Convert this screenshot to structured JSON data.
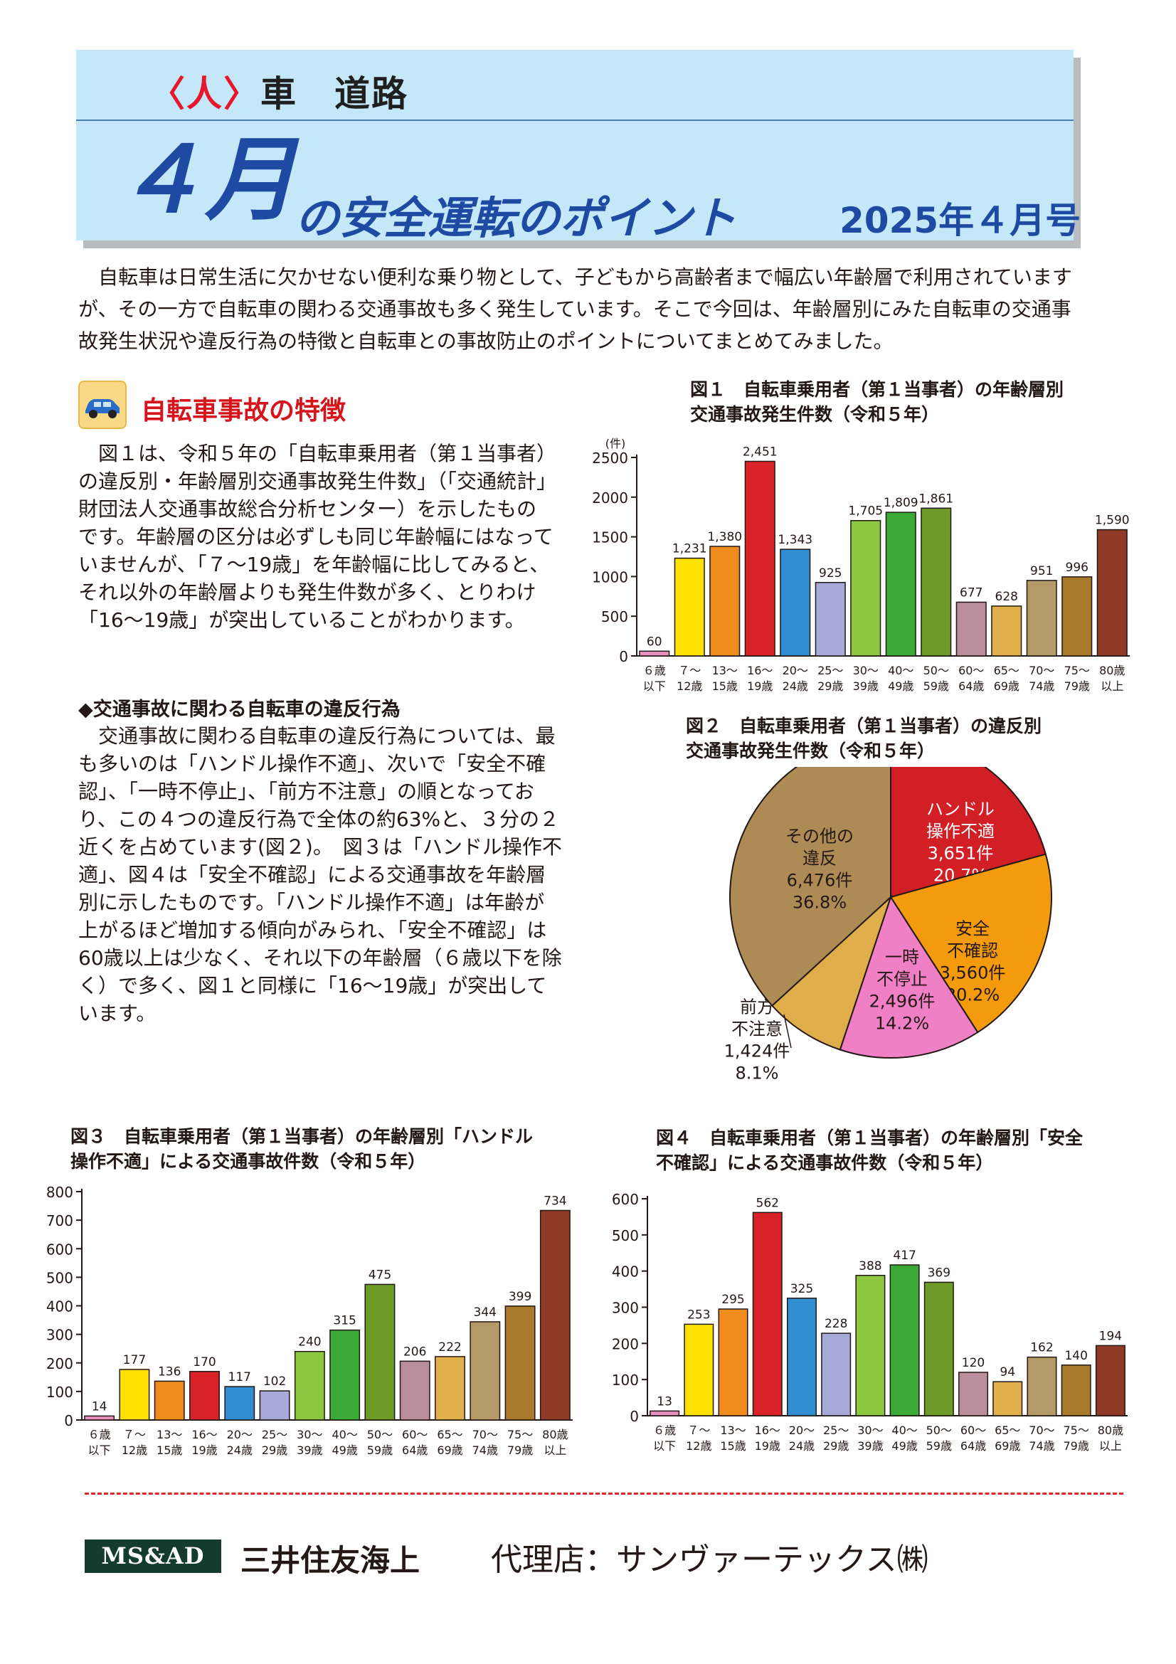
{
  "header": {
    "category_highlight": "〈人〉",
    "category_rest": "車　道路",
    "title_month": "４月",
    "title_sub": "の安全運転のポイント",
    "issue": "2025年４月号"
  },
  "intro": "自転車は日常生活に欠かせない便利な乗り物として、子どもから高齢者まで幅広い年齢層で利用されていますが、その一方で自転車の関わる交通事故も多く発生しています。そこで今回は、年齢層別にみた自転車の交通事故発生状況や違反行為の特徴と自転車との事故防止のポイントについてまとめてみました。",
  "section": {
    "icon": "car-icon",
    "title": "自転車事故の特徴",
    "para1": "図１は、令和５年の「自転車乗用者（第１当事者）の違反別・年齢層別交通事故発生件数」（「交通統計」財団法人交通事故総合分析センター）を示したものです。年齢層の区分は必ずしも同じ年齢幅にはなっていませんが、「７～19歳」を年齢幅に比してみると、それ以外の年齢層よりも発生件数が多く、とりわけ「16～19歳」が突出していることがわかります。",
    "sub_heading": "◆交通事故に関わる自転車の違反行為",
    "para2": "交通事故に関わる自転車の違反行為については、最も多いのは「ハンドル操作不適」、次いで「安全不確認」、「一時不停止」、「前方不注意」の順となっており、この４つの違反行為で全体の約63%と、３分の２近くを占めています(図２)。　図３は「ハンドル操作不適」、図４は「安全不確認」による交通事故を年齢層別に示したものです。「ハンドル操作不適」は年齢が上がるほど増加する傾向がみられ、「安全不確認」は60歳以上は少なく、それ以下の年齢層（６歳以下を除く）で多く、図１と同様に「16～19歳」が突出しています。"
  },
  "figures": {
    "fig1_title": "図１　自転車乗用者（第１当事者）の年齢層別\n交通事故発生件数（令和５年）",
    "fig2_title": "図２　自転車乗用者（第１当事者）の違反別\n交通事故発生件数（令和５年）",
    "fig3_title": "図３　自転車乗用者（第１当事者）の年齢層別「ハンドル\n操作不適」による交通事故件数（令和５年）",
    "fig4_title": "図４　自転車乗用者（第１当事者）の年齢層別「安全\n不確認」による交通事故件数（令和５年）"
  },
  "chart_data": [
    {
      "id": "fig1",
      "type": "bar",
      "title": "図１　自転車乗用者（第１当事者）の年齢層別 交通事故発生件数（令和５年）",
      "ylabel": "(件)",
      "ylim": [
        0,
        2500
      ],
      "yticks": [
        0,
        500,
        1000,
        1500,
        2000,
        2500
      ],
      "categories": [
        [
          "６歳",
          "以下"
        ],
        [
          "７～",
          "12歳"
        ],
        [
          "13～",
          "15歳"
        ],
        [
          "16～",
          "19歳"
        ],
        [
          "20～",
          "24歳"
        ],
        [
          "25～",
          "29歳"
        ],
        [
          "30～",
          "39歳"
        ],
        [
          "40～",
          "49歳"
        ],
        [
          "50～",
          "59歳"
        ],
        [
          "60～",
          "64歳"
        ],
        [
          "65～",
          "69歳"
        ],
        [
          "70～",
          "74歳"
        ],
        [
          "75～",
          "79歳"
        ],
        [
          "80歳",
          "以上"
        ]
      ],
      "values": [
        60,
        1231,
        1380,
        2451,
        1343,
        925,
        1705,
        1809,
        1861,
        677,
        628,
        951,
        996,
        1590
      ],
      "labels": [
        "60",
        "1,231",
        "1,380",
        "2,451",
        "1,343",
        "925",
        "1,705",
        "1,809",
        "1,861",
        "677",
        "628",
        "951",
        "996",
        "1,590"
      ],
      "colors": [
        "#e98fc0",
        "#fce100",
        "#f08b1d",
        "#d92128",
        "#2f8dd0",
        "#a7a9d8",
        "#8dc63f",
        "#3aa935",
        "#6e9a2a",
        "#b98d9b",
        "#e2b04a",
        "#b49a67",
        "#a8782b",
        "#8e3a26"
      ]
    },
    {
      "id": "fig2",
      "type": "pie",
      "title": "図２　自転車乗用者（第１当事者）の違反別 交通事故発生件数（令和５年）",
      "slices": [
        {
          "lines": [
            "ハンドル",
            "操作不適",
            "3,651件",
            "20.7%"
          ],
          "value": 20.7,
          "color": "#d21f26"
        },
        {
          "lines": [
            "安全",
            "不確認",
            "3,560件",
            "20.2%"
          ],
          "value": 20.2,
          "color": "#f39a0d"
        },
        {
          "lines": [
            "一時",
            "不停止",
            "2,496件",
            "14.2%"
          ],
          "value": 14.2,
          "color": "#f080c6"
        },
        {
          "lines": [
            "前方",
            "不注意",
            "1,424件",
            "8.1%"
          ],
          "value": 8.1,
          "color": "#dfae4a"
        },
        {
          "lines": [
            "その他の",
            "違反",
            "6,476件",
            "36.8%"
          ],
          "value": 36.8,
          "color": "#ae8a55"
        }
      ]
    },
    {
      "id": "fig3",
      "type": "bar",
      "title": "図３　自転車乗用者（第１当事者）の年齢層別「ハンドル操作不適」による交通事故件数（令和５年）",
      "ylim": [
        0,
        800
      ],
      "yticks": [
        0,
        100,
        200,
        300,
        400,
        500,
        600,
        700,
        800
      ],
      "categories": [
        [
          "６歳",
          "以下"
        ],
        [
          "７～",
          "12歳"
        ],
        [
          "13～",
          "15歳"
        ],
        [
          "16～",
          "19歳"
        ],
        [
          "20～",
          "24歳"
        ],
        [
          "25～",
          "29歳"
        ],
        [
          "30～",
          "39歳"
        ],
        [
          "40～",
          "49歳"
        ],
        [
          "50～",
          "59歳"
        ],
        [
          "60～",
          "64歳"
        ],
        [
          "65～",
          "69歳"
        ],
        [
          "70～",
          "74歳"
        ],
        [
          "75～",
          "79歳"
        ],
        [
          "80歳",
          "以上"
        ]
      ],
      "values": [
        14,
        177,
        136,
        170,
        117,
        102,
        240,
        315,
        475,
        206,
        222,
        344,
        399,
        734
      ],
      "labels": [
        "14",
        "177",
        "136",
        "170",
        "117",
        "102",
        "240",
        "315",
        "475",
        "206",
        "222",
        "344",
        "399",
        "734"
      ],
      "colors": [
        "#e98fc0",
        "#fce100",
        "#f08b1d",
        "#d92128",
        "#2f8dd0",
        "#a7a9d8",
        "#8dc63f",
        "#3aa935",
        "#6e9a2a",
        "#b98d9b",
        "#e2b04a",
        "#b49a67",
        "#a8782b",
        "#8e3a26"
      ]
    },
    {
      "id": "fig4",
      "type": "bar",
      "title": "図４　自転車乗用者（第１当事者）の年齢層別「安全不確認」による交通事故件数（令和５年）",
      "ylim": [
        0,
        600
      ],
      "yticks": [
        0,
        100,
        200,
        300,
        400,
        500,
        600
      ],
      "categories": [
        [
          "６歳",
          "以下"
        ],
        [
          "７～",
          "12歳"
        ],
        [
          "13～",
          "15歳"
        ],
        [
          "16～",
          "19歳"
        ],
        [
          "20～",
          "24歳"
        ],
        [
          "25～",
          "29歳"
        ],
        [
          "30～",
          "39歳"
        ],
        [
          "40～",
          "49歳"
        ],
        [
          "50～",
          "59歳"
        ],
        [
          "60～",
          "64歳"
        ],
        [
          "65～",
          "69歳"
        ],
        [
          "70～",
          "74歳"
        ],
        [
          "75～",
          "79歳"
        ],
        [
          "80歳",
          "以上"
        ]
      ],
      "values": [
        13,
        253,
        295,
        562,
        325,
        228,
        388,
        417,
        369,
        120,
        94,
        162,
        140,
        194
      ],
      "labels": [
        "13",
        "253",
        "295",
        "562",
        "325",
        "228",
        "388",
        "417",
        "369",
        "120",
        "94",
        "162",
        "140",
        "194"
      ],
      "colors": [
        "#e98fc0",
        "#fce100",
        "#f08b1d",
        "#d92128",
        "#2f8dd0",
        "#a7a9d8",
        "#8dc63f",
        "#3aa935",
        "#6e9a2a",
        "#b98d9b",
        "#e2b04a",
        "#b49a67",
        "#a8782b",
        "#8e3a26"
      ]
    }
  ],
  "footer": {
    "logo_text": "MS&AD",
    "insurer": "三井住友海上",
    "agency": "代理店：サンヴァーテックス㈱"
  }
}
